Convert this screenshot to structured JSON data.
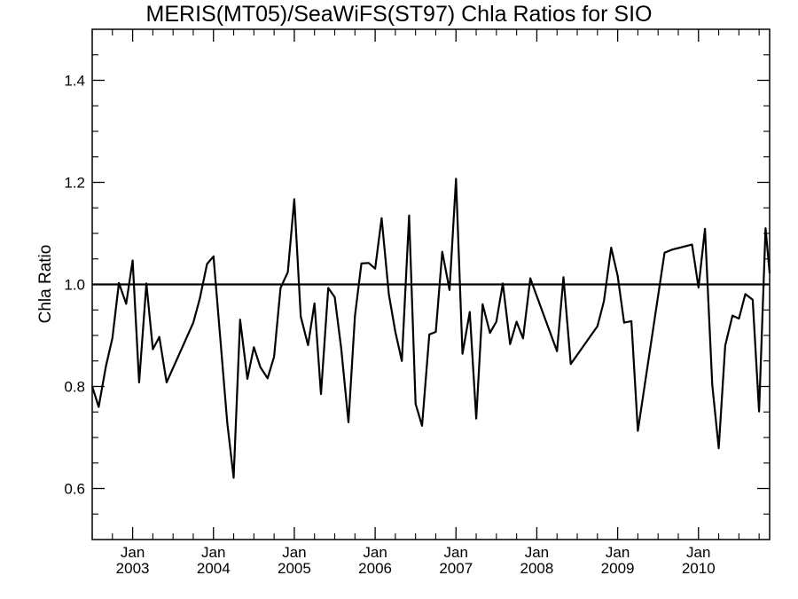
{
  "chart_data": {
    "type": "line",
    "title": "MERIS(MT05)/SeaWiFS(ST97)  Chla Ratios for SIO",
    "xlabel": "",
    "ylabel": "Chla Ratio",
    "xlim": [
      2002.5,
      2010.88
    ],
    "ylim": [
      0.5,
      1.5
    ],
    "y_ticks": [
      0.6,
      0.8,
      1.0,
      1.2,
      1.4
    ],
    "y_tick_labels": [
      "0.6",
      "0.8",
      "1.0",
      "1.2",
      "1.4"
    ],
    "x_ticks": [
      2003,
      2004,
      2005,
      2006,
      2007,
      2008,
      2009,
      2010
    ],
    "x_tick_month_labels": [
      "Jan",
      "Jan",
      "Jan",
      "Jan",
      "Jan",
      "Jan",
      "Jan",
      "Jan"
    ],
    "x_tick_year_labels": [
      "2003",
      "2004",
      "2005",
      "2006",
      "2007",
      "2008",
      "2009",
      "2010"
    ],
    "grid": false,
    "reference_line": 1.0,
    "series": [
      {
        "color": "#000000",
        "x": [
          2002.5,
          2002.58,
          2002.67,
          2002.75,
          2002.83,
          2002.92,
          2003.0,
          2003.08,
          2003.17,
          2003.25,
          2003.33,
          2003.42,
          2003.75,
          2003.83,
          2003.92,
          2004.0,
          2004.17,
          2004.25,
          2004.33,
          2004.42,
          2004.5,
          2004.58,
          2004.67,
          2004.75,
          2004.83,
          2004.92,
          2005.0,
          2005.08,
          2005.17,
          2005.25,
          2005.33,
          2005.42,
          2005.5,
          2005.58,
          2005.67,
          2005.75,
          2005.83,
          2005.92,
          2006.0,
          2006.08,
          2006.17,
          2006.25,
          2006.33,
          2006.42,
          2006.5,
          2006.58,
          2006.67,
          2006.75,
          2006.83,
          2006.92,
          2007.0,
          2007.08,
          2007.17,
          2007.25,
          2007.33,
          2007.42,
          2007.5,
          2007.58,
          2007.67,
          2007.75,
          2007.83,
          2007.92,
          2008.0,
          2008.25,
          2008.33,
          2008.42,
          2008.75,
          2008.83,
          2008.92,
          2009.0,
          2009.08,
          2009.17,
          2009.25,
          2009.58,
          2009.67,
          2009.92,
          2010.0,
          2010.08,
          2010.17,
          2010.25,
          2010.33,
          2010.42,
          2010.5,
          2010.58,
          2010.67,
          2010.75,
          2010.83,
          2010.88
        ],
        "y": [
          0.8,
          0.76,
          0.84,
          0.895,
          1.003,
          0.962,
          1.047,
          0.808,
          1.002,
          0.873,
          0.897,
          0.808,
          0.925,
          0.972,
          1.04,
          1.055,
          0.729,
          0.621,
          0.931,
          0.815,
          0.877,
          0.838,
          0.816,
          0.858,
          0.993,
          1.024,
          1.167,
          0.937,
          0.881,
          0.963,
          0.785,
          0.993,
          0.975,
          0.875,
          0.73,
          0.938,
          1.041,
          1.042,
          1.031,
          1.13,
          0.98,
          0.907,
          0.85,
          1.135,
          0.766,
          0.723,
          0.902,
          0.907,
          1.064,
          0.989,
          1.207,
          0.864,
          0.946,
          0.737,
          0.961,
          0.905,
          0.927,
          1.002,
          0.883,
          0.927,
          0.894,
          1.012,
          0.977,
          0.869,
          1.014,
          0.844,
          0.918,
          0.967,
          1.072,
          1.017,
          0.925,
          0.928,
          0.713,
          1.062,
          1.068,
          1.078,
          0.994,
          1.109,
          0.803,
          0.679,
          0.88,
          0.939,
          0.933,
          0.981,
          0.97,
          0.751,
          1.11,
          1.022
        ]
      }
    ]
  }
}
